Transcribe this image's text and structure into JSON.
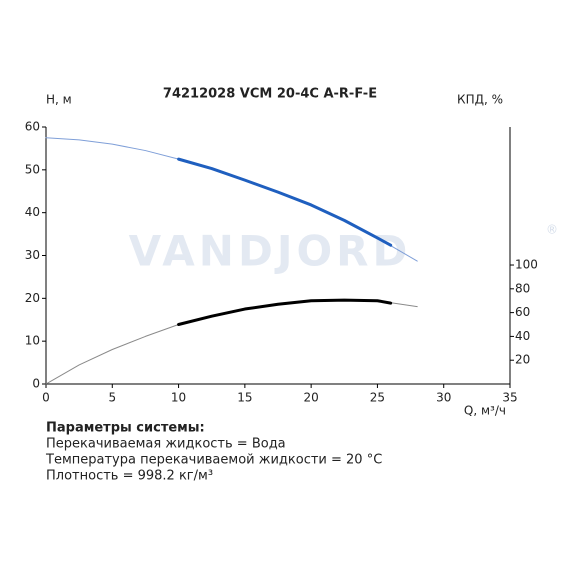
{
  "chart_data": {
    "type": "line",
    "title": "74212028 VCM 20-4C A-R-F-E",
    "watermark": "VANDJORD",
    "watermark_mark": "®",
    "ylabel": "Н, м",
    "y2label": "КПД, %",
    "xlabel": "Q, м³/ч",
    "xlim": [
      0,
      35
    ],
    "xticks": [
      0,
      5,
      10,
      15,
      20,
      25,
      30,
      35
    ],
    "ylim": [
      0,
      60
    ],
    "yticks": [
      0,
      10,
      20,
      30,
      40,
      50,
      60
    ],
    "y2lim": [
      0,
      216
    ],
    "y2ticks": [
      20,
      40,
      60,
      80,
      100
    ],
    "series": [
      {
        "axis": "y",
        "color": "#7f9fd8",
        "width": 1,
        "x": [
          0,
          2.5,
          5,
          7.5,
          10,
          12.5,
          15,
          17.5,
          20,
          22.5,
          25,
          28
        ],
        "values": [
          57.5,
          57,
          56,
          54.5,
          52.5,
          50.3,
          47.6,
          44.8,
          41.8,
          38.2,
          34.1,
          28.7
        ]
      },
      {
        "axis": "y",
        "color": "#1f5fbf",
        "width": 3,
        "x": [
          10,
          12.5,
          15,
          17.5,
          20,
          22.5,
          25,
          26
        ],
        "values": [
          52.5,
          50.3,
          47.6,
          44.8,
          41.8,
          38.2,
          34.1,
          32.4
        ]
      },
      {
        "axis": "y2",
        "color": "#8a8a8a",
        "width": 1,
        "x": [
          0,
          2.5,
          5,
          7.5,
          10,
          12.5,
          15,
          17.5,
          20,
          22.5,
          25,
          28
        ],
        "values": [
          0,
          16,
          29,
          40,
          50,
          57,
          63,
          67,
          70,
          70.5,
          70,
          65
        ]
      },
      {
        "axis": "y2",
        "color": "#000000",
        "width": 3,
        "x": [
          10,
          12.5,
          15,
          17.5,
          20,
          22.5,
          25,
          26
        ],
        "values": [
          50,
          57,
          63,
          67,
          70,
          70.5,
          70,
          68
        ]
      }
    ]
  },
  "system_params": {
    "heading": "Параметры системы:",
    "lines": [
      "Перекачиваемая жидкость = Вода",
      "Температура перекачиваемой жидкости = 20 °C",
      "Плотность = 998.2 кг/м³"
    ]
  }
}
